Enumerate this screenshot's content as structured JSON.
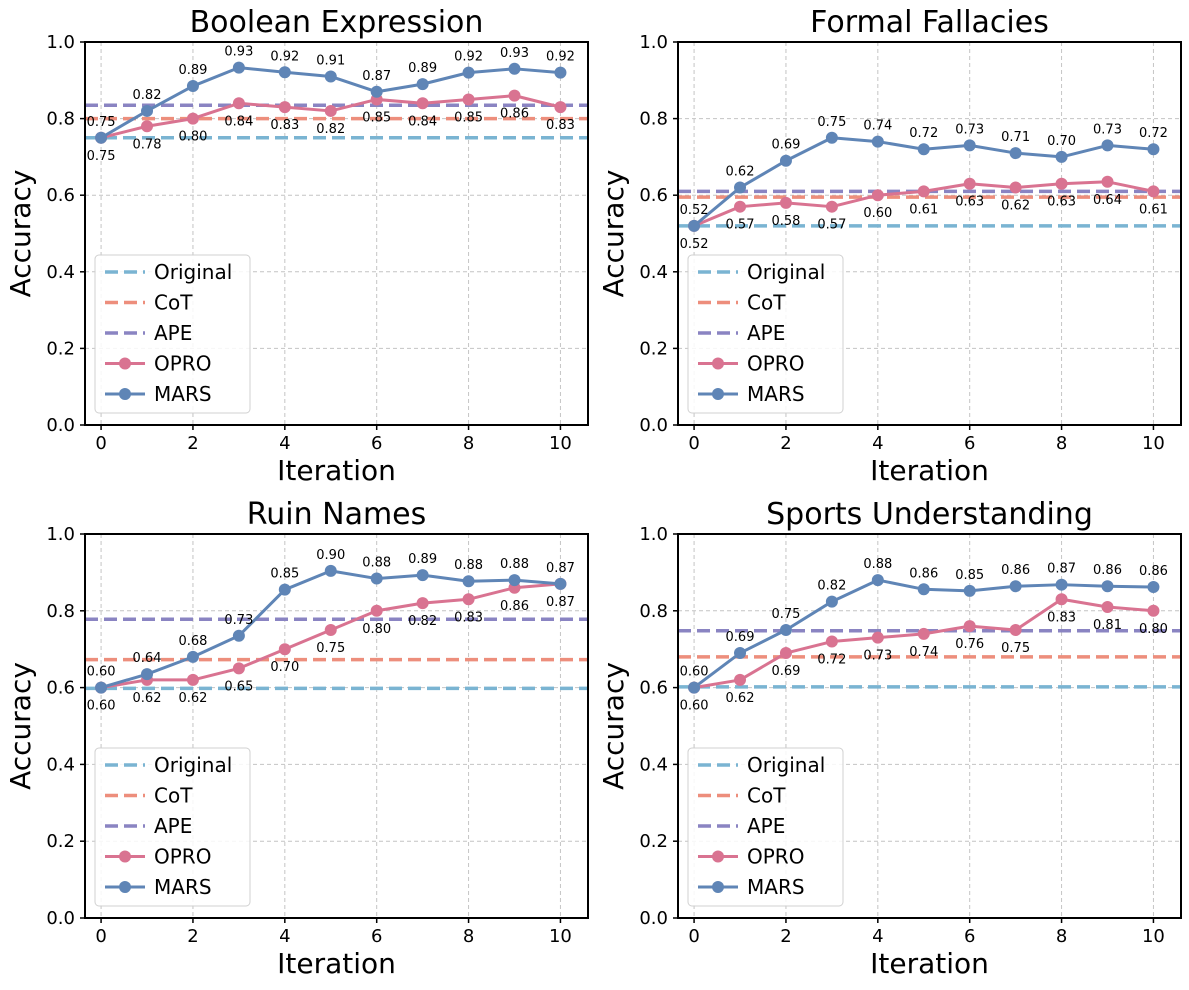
{
  "chart_data": [
    {
      "type": "line",
      "title": "Boolean Expression",
      "xlabel": "Iteration",
      "ylabel": "Accuracy",
      "xlim": [
        -0.35,
        10.6
      ],
      "ylim": [
        0.0,
        1.0
      ],
      "xticks": [
        "0",
        "2",
        "4",
        "6",
        "8",
        "10"
      ],
      "yticks": [
        "0.0",
        "0.2",
        "0.4",
        "0.6",
        "0.8",
        "1.0"
      ],
      "baselines": [
        {
          "name": "Original",
          "value": 0.75
        },
        {
          "name": "CoT",
          "value": 0.8
        },
        {
          "name": "APE",
          "value": 0.835
        }
      ],
      "series": [
        {
          "name": "OPRO",
          "values": [
            0.75,
            0.78,
            0.8,
            0.84,
            0.83,
            0.82,
            0.85,
            0.84,
            0.85,
            0.86,
            0.83
          ],
          "labels": [
            "0.75",
            "0.78",
            "0.80",
            "0.84",
            "0.83",
            "0.82",
            "0.85",
            "0.84",
            "0.85",
            "0.86",
            "0.83"
          ]
        },
        {
          "name": "MARS",
          "values": [
            0.75,
            0.82,
            0.885,
            0.933,
            0.921,
            0.91,
            0.87,
            0.89,
            0.92,
            0.93,
            0.92
          ],
          "labels": [
            "0.75",
            "0.82",
            "0.89",
            "0.93",
            "0.92",
            "0.91",
            "0.87",
            "0.89",
            "0.92",
            "0.93",
            "0.92"
          ]
        }
      ],
      "legend": {
        "entries": [
          "Original",
          "CoT",
          "APE",
          "OPRO",
          "MARS"
        ],
        "loc": "lower-left"
      }
    },
    {
      "type": "line",
      "title": "Formal Fallacies",
      "xlabel": "Iteration",
      "ylabel": "Accuracy",
      "xlim": [
        -0.35,
        10.6
      ],
      "ylim": [
        0.0,
        1.0
      ],
      "xticks": [
        "0",
        "2",
        "4",
        "6",
        "8",
        "10"
      ],
      "yticks": [
        "0.0",
        "0.2",
        "0.4",
        "0.6",
        "0.8",
        "1.0"
      ],
      "baselines": [
        {
          "name": "Original",
          "value": 0.52
        },
        {
          "name": "CoT",
          "value": 0.595
        },
        {
          "name": "APE",
          "value": 0.61
        }
      ],
      "series": [
        {
          "name": "OPRO",
          "values": [
            0.52,
            0.57,
            0.58,
            0.57,
            0.6,
            0.61,
            0.63,
            0.62,
            0.63,
            0.635,
            0.61
          ],
          "labels": [
            "0.52",
            "0.57",
            "0.58",
            "0.57",
            "0.60",
            "0.61",
            "0.63",
            "0.62",
            "0.63",
            "0.64",
            "0.61"
          ]
        },
        {
          "name": "MARS",
          "values": [
            0.52,
            0.62,
            0.69,
            0.75,
            0.74,
            0.72,
            0.73,
            0.71,
            0.7,
            0.73,
            0.72
          ],
          "labels": [
            "0.52",
            "0.62",
            "0.69",
            "0.75",
            "0.74",
            "0.72",
            "0.73",
            "0.71",
            "0.70",
            "0.73",
            "0.72"
          ]
        }
      ],
      "legend": {
        "entries": [
          "Original",
          "CoT",
          "APE",
          "OPRO",
          "MARS"
        ],
        "loc": "lower-left"
      }
    },
    {
      "type": "line",
      "title": "Ruin Names",
      "xlabel": "Iteration",
      "ylabel": "Accuracy",
      "xlim": [
        -0.35,
        10.6
      ],
      "ylim": [
        0.0,
        1.0
      ],
      "xticks": [
        "0",
        "2",
        "4",
        "6",
        "8",
        "10"
      ],
      "yticks": [
        "0.0",
        "0.2",
        "0.4",
        "0.6",
        "0.8",
        "1.0"
      ],
      "baselines": [
        {
          "name": "Original",
          "value": 0.598
        },
        {
          "name": "CoT",
          "value": 0.673
        },
        {
          "name": "APE",
          "value": 0.778
        }
      ],
      "series": [
        {
          "name": "OPRO",
          "values": [
            0.6,
            0.62,
            0.62,
            0.65,
            0.7,
            0.75,
            0.8,
            0.82,
            0.83,
            0.86,
            0.87
          ],
          "labels": [
            "0.60",
            "0.62",
            "0.62",
            "0.65",
            "0.70",
            "0.75",
            "0.80",
            "0.82",
            "0.83",
            "0.86",
            "0.87"
          ]
        },
        {
          "name": "MARS",
          "values": [
            0.6,
            0.635,
            0.68,
            0.735,
            0.855,
            0.904,
            0.884,
            0.893,
            0.877,
            0.88,
            0.87
          ],
          "labels": [
            "0.60",
            "0.64",
            "0.68",
            "0.73",
            "0.85",
            "0.90",
            "0.88",
            "0.89",
            "0.88",
            "0.88",
            "0.87"
          ]
        }
      ],
      "legend": {
        "entries": [
          "Original",
          "CoT",
          "APE",
          "OPRO",
          "MARS"
        ],
        "loc": "lower-left"
      }
    },
    {
      "type": "line",
      "title": "Sports Understanding",
      "xlabel": "Iteration",
      "ylabel": "Accuracy",
      "xlim": [
        -0.35,
        10.6
      ],
      "ylim": [
        0.0,
        1.0
      ],
      "xticks": [
        "0",
        "2",
        "4",
        "6",
        "8",
        "10"
      ],
      "yticks": [
        "0.0",
        "0.2",
        "0.4",
        "0.6",
        "0.8",
        "1.0"
      ],
      "baselines": [
        {
          "name": "Original",
          "value": 0.602
        },
        {
          "name": "CoT",
          "value": 0.68
        },
        {
          "name": "APE",
          "value": 0.748
        }
      ],
      "series": [
        {
          "name": "OPRO",
          "values": [
            0.6,
            0.62,
            0.69,
            0.72,
            0.73,
            0.74,
            0.76,
            0.75,
            0.83,
            0.81,
            0.8
          ],
          "labels": [
            "0.60",
            "0.62",
            "0.69",
            "0.72",
            "0.73",
            "0.74",
            "0.76",
            "0.75",
            "0.83",
            "0.81",
            "0.80"
          ]
        },
        {
          "name": "MARS",
          "values": [
            0.6,
            0.69,
            0.75,
            0.824,
            0.88,
            0.856,
            0.852,
            0.864,
            0.868,
            0.864,
            0.862
          ],
          "labels": [
            "0.60",
            "0.69",
            "0.75",
            "0.82",
            "0.88",
            "0.86",
            "0.85",
            "0.86",
            "0.87",
            "0.86",
            "0.86"
          ]
        }
      ],
      "legend": {
        "entries": [
          "Original",
          "CoT",
          "APE",
          "OPRO",
          "MARS"
        ],
        "loc": "lower-left"
      }
    }
  ],
  "colors": {
    "Original": "#7ab4d2",
    "CoT": "#ed8e7c",
    "APE": "#8a84c2",
    "OPRO": "#d97391",
    "MARS": "#5f85b6",
    "grid": "#c4c4c4",
    "axis": "#000000"
  }
}
